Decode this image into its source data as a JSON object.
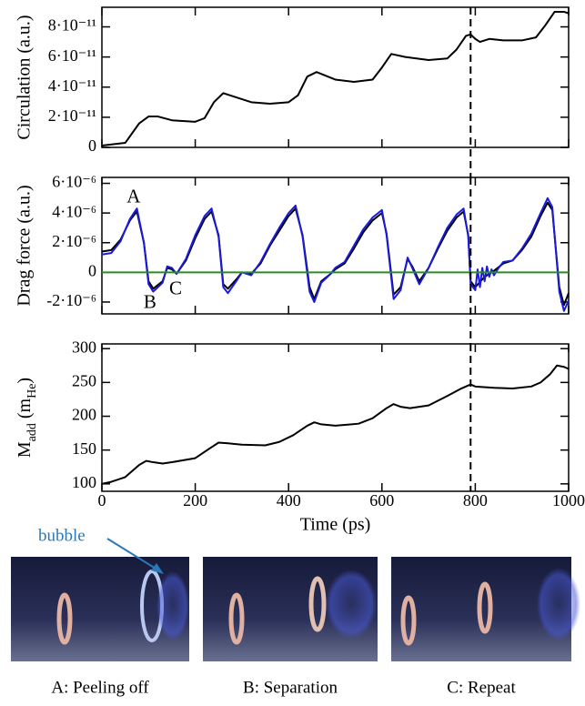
{
  "chart_data": [
    {
      "type": "line",
      "ylabel": "Circulation (a.u.)",
      "xlim": [
        0,
        1000
      ],
      "xticks": [
        0,
        200,
        400,
        600,
        800,
        1000
      ],
      "show_xticklabels": false,
      "ylim": [
        0,
        9.3e-11
      ],
      "yticks": [
        0,
        {
          "value": 2e-11,
          "label": "2·10⁻¹¹"
        },
        {
          "value": 4e-11,
          "label": "4·10⁻¹¹"
        },
        {
          "value": 6e-11,
          "label": "6·10⁻¹¹"
        },
        {
          "value": 8e-11,
          "label": "8·10⁻¹¹"
        }
      ],
      "vline": 790,
      "series": [
        {
          "name": "circulation",
          "color": "#000000",
          "x": [
            0,
            50,
            80,
            100,
            120,
            150,
            200,
            220,
            240,
            260,
            280,
            320,
            360,
            400,
            420,
            440,
            460,
            500,
            540,
            580,
            600,
            620,
            650,
            700,
            740,
            760,
            780,
            790,
            800,
            810,
            830,
            860,
            900,
            930,
            950,
            970,
            990,
            1000
          ],
          "values": [
            1.2e-12,
            3e-12,
            1.6e-11,
            2.05e-11,
            2.05e-11,
            1.8e-11,
            1.7e-11,
            1.94e-11,
            3e-11,
            3.6e-11,
            3.4e-11,
            3e-11,
            2.9e-11,
            3e-11,
            3.45e-11,
            4.7e-11,
            5e-11,
            4.5e-11,
            4.35e-11,
            4.5e-11,
            5.3e-11,
            6.2e-11,
            6e-11,
            5.8e-11,
            5.9e-11,
            6.5e-11,
            7.4e-11,
            7.5e-11,
            7.2e-11,
            7e-11,
            7.2e-11,
            7.1e-11,
            7.1e-11,
            7.3e-11,
            8.1e-11,
            9e-11,
            9e-11,
            8.9e-11
          ]
        }
      ]
    },
    {
      "type": "line",
      "ylabel": "Drag force (a.u.)",
      "xlim": [
        0,
        1000
      ],
      "xticks": [
        0,
        200,
        400,
        600,
        800,
        1000
      ],
      "show_xticklabels": false,
      "ylim": [
        -2.8e-06,
        6.4e-06
      ],
      "yticks": [
        {
          "value": -2e-06,
          "label": "-2·10⁻⁶"
        },
        0,
        {
          "value": 2e-06,
          "label": "2·10⁻⁶"
        },
        {
          "value": 4e-06,
          "label": "4·10⁻⁶"
        },
        {
          "value": 6e-06,
          "label": "6·10⁻⁶"
        }
      ],
      "vline": 790,
      "annotations": [
        {
          "text": "A",
          "x": 68,
          "y": 5e-06
        },
        {
          "text": "B",
          "x": 103,
          "y": -2.1e-06
        },
        {
          "text": "C",
          "x": 158,
          "y": -1.2e-06
        }
      ],
      "series": [
        {
          "name": "drag-black",
          "color": "#000000",
          "x": [
            0,
            20,
            40,
            60,
            75,
            90,
            100,
            110,
            130,
            140,
            150,
            160,
            180,
            200,
            220,
            235,
            250,
            260,
            270,
            290,
            300,
            320,
            340,
            360,
            380,
            400,
            415,
            430,
            445,
            455,
            470,
            490,
            500,
            520,
            540,
            560,
            580,
            600,
            610,
            625,
            640,
            655,
            665,
            680,
            700,
            720,
            740,
            760,
            775,
            785,
            790,
            800,
            820,
            840,
            860,
            880,
            900,
            920,
            940,
            955,
            965,
            980,
            990,
            1000
          ],
          "values": [
            1.4e-06,
            1.5e-06,
            2.2e-06,
            3.5e-06,
            4.1e-06,
            2e-06,
            -6e-07,
            -1.1e-06,
            -6e-07,
            3e-07,
            2e-07,
            -1e-07,
            8e-07,
            2.3e-06,
            3.6e-06,
            4.1e-06,
            2.5e-06,
            -8e-07,
            -1.1e-06,
            -4e-07,
            0,
            -1e-07,
            6e-07,
            1.8e-06,
            2.8e-06,
            3.8e-06,
            4.3e-06,
            2.5e-06,
            -1e-06,
            -1.8e-06,
            -6e-07,
            -1e-07,
            2e-07,
            6e-07,
            1.6e-06,
            2.7e-06,
            3.5e-06,
            4e-06,
            2.6e-06,
            -1.5e-06,
            -1e-06,
            9e-07,
            4e-07,
            -6e-07,
            3e-07,
            1.6e-06,
            2.8e-06,
            3.7e-06,
            4.1e-06,
            2.5e-06,
            -6e-07,
            -1e-06,
            -3e-07,
            1e-07,
            6e-07,
            8e-07,
            1.5e-06,
            2.4e-06,
            3.8e-06,
            4.7e-06,
            4.2e-06,
            -1e-06,
            -2.2e-06,
            -1.4e-06
          ]
        },
        {
          "name": "drag-blue",
          "color": "#1a1adc",
          "x": [
            0,
            20,
            40,
            60,
            75,
            90,
            100,
            110,
            130,
            140,
            150,
            160,
            180,
            200,
            220,
            235,
            250,
            260,
            270,
            290,
            300,
            320,
            340,
            360,
            380,
            400,
            415,
            430,
            445,
            455,
            470,
            490,
            500,
            520,
            540,
            560,
            580,
            600,
            610,
            625,
            640,
            655,
            665,
            680,
            700,
            720,
            740,
            760,
            775,
            785,
            790,
            800,
            805,
            810,
            815,
            820,
            825,
            830,
            835,
            840,
            850,
            860,
            880,
            900,
            920,
            940,
            955,
            965,
            980,
            990,
            1000
          ],
          "values": [
            1.2e-06,
            1.3e-06,
            2.1e-06,
            3.6e-06,
            4.3e-06,
            2e-06,
            -8e-07,
            -1.3e-06,
            -7e-07,
            4e-07,
            3e-07,
            -1e-07,
            9e-07,
            2.5e-06,
            3.8e-06,
            4.3e-06,
            2.4e-06,
            -1e-06,
            -1.4e-06,
            -5e-07,
            0,
            -2e-07,
            7e-07,
            1.9e-06,
            3e-06,
            4e-06,
            4.5e-06,
            2.4e-06,
            -1.3e-06,
            -2e-06,
            -7e-07,
            -1e-07,
            3e-07,
            7e-07,
            1.8e-06,
            2.9e-06,
            3.7e-06,
            4.2e-06,
            2.5e-06,
            -1.8e-06,
            -1.2e-06,
            1e-06,
            3e-07,
            -8e-07,
            3e-07,
            1.7e-06,
            3e-06,
            3.9e-06,
            4.3e-06,
            2.4e-06,
            -8e-07,
            -1.2e-06,
            2e-07,
            -1e-06,
            3e-07,
            -6e-07,
            4e-07,
            -3e-07,
            2e-07,
            -2e-07,
            3e-07,
            7e-07,
            8e-07,
            1.6e-06,
            2.6e-06,
            4e-06,
            5e-06,
            4.4e-06,
            -1.3e-06,
            -2.6e-06,
            -1.9e-06
          ]
        },
        {
          "name": "drag-zero",
          "color": "#2e8b20",
          "x": [
            0,
            1000
          ],
          "values": [
            0,
            0
          ]
        }
      ]
    },
    {
      "type": "line",
      "ylabel": [
        {
          "text": "M"
        },
        {
          "text": "add",
          "sub": true
        },
        {
          "text": " (m"
        },
        {
          "text": "He",
          "sub": true
        },
        {
          "text": ")"
        }
      ],
      "xlabel": "Time (ps)",
      "xlim": [
        0,
        1000
      ],
      "xticks": [
        0,
        200,
        400,
        600,
        800,
        1000
      ],
      "show_xticklabels": true,
      "ylim": [
        89,
        307
      ],
      "yticks": [
        100,
        150,
        200,
        250,
        300
      ],
      "vline": 790,
      "series": [
        {
          "name": "added-mass",
          "color": "#000000",
          "x": [
            0,
            20,
            50,
            80,
            95,
            110,
            130,
            150,
            200,
            230,
            250,
            270,
            300,
            350,
            380,
            410,
            440,
            455,
            470,
            500,
            550,
            580,
            610,
            625,
            640,
            660,
            700,
            740,
            770,
            790,
            800,
            840,
            880,
            920,
            940,
            960,
            975,
            990,
            1000
          ],
          "values": [
            100,
            103,
            110,
            128,
            134,
            132,
            130,
            132,
            138,
            152,
            161,
            160,
            158,
            157,
            162,
            172,
            186,
            191,
            188,
            186,
            189,
            197,
            212,
            218,
            214,
            212,
            216,
            230,
            241,
            247,
            244,
            242,
            241,
            244,
            250,
            262,
            275,
            273,
            270
          ]
        }
      ]
    }
  ],
  "panels": {
    "bubble_label": "bubble",
    "captions": [
      "A: Peeling off",
      "B: Separation",
      "C: Repeat"
    ]
  }
}
